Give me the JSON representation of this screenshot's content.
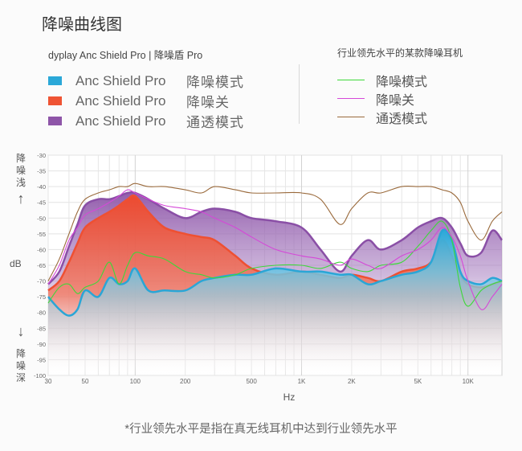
{
  "title": "降噪曲线图",
  "subtitle": "dyplay Anc Shield Pro | 降噪盾 Pro",
  "legend_left": [
    {
      "name": "Anc Shield Pro",
      "mode": "降噪模式",
      "color": "#2ba8d8"
    },
    {
      "name": "Anc Shield Pro",
      "mode": "降噪关",
      "color": "#ef5434"
    },
    {
      "name": "Anc Shield Pro",
      "mode": "通透模式",
      "color": "#8e55a8"
    }
  ],
  "legend_right_title": "行业领先水平的某款降噪耳机",
  "legend_right": [
    {
      "label": "降噪模式",
      "color": "#3ed83a"
    },
    {
      "label": "降噪关",
      "color": "#d548d8"
    },
    {
      "label": "通透模式",
      "color": "#9a6a3c"
    }
  ],
  "side_top": "降噪浅",
  "side_bottom": "降噪深",
  "arrow_up": "↑",
  "arrow_down": "↓",
  "ylabel": "dB",
  "xlabel": "Hz",
  "footnote": "*行业领先水平是指在真无线耳机中达到行业领先水平",
  "chart_data": {
    "type": "area",
    "x_scale": "log",
    "xlim": [
      30,
      16000
    ],
    "ylim": [
      -100,
      -30
    ],
    "x_ticks": [
      30,
      50,
      100,
      200,
      500,
      1000,
      2000,
      5000,
      10000
    ],
    "x_tick_labels": [
      "30",
      "50",
      "100",
      "200",
      "500",
      "1K",
      "2K",
      "5K",
      "10K"
    ],
    "y_ticks": [
      -30,
      -35,
      -40,
      -45,
      -50,
      -55,
      -60,
      -65,
      -70,
      -75,
      -80,
      -85,
      -90,
      -95,
      -100
    ],
    "y_tick_labels": [
      "-30",
      "-35",
      "-40",
      "-45",
      "-50",
      "-55",
      "-60",
      "-65",
      "-70",
      "-75",
      "-80",
      "-85",
      "-90",
      "-95",
      "-100"
    ],
    "x": [
      30,
      35,
      40,
      45,
      50,
      60,
      70,
      80,
      90,
      100,
      120,
      150,
      200,
      250,
      300,
      400,
      500,
      700,
      1000,
      1300,
      1700,
      2000,
      2500,
      3000,
      4000,
      5000,
      6000,
      7000,
      8000,
      9000,
      10000,
      12000,
      14000,
      16000
    ],
    "series": [
      {
        "name": "Anc Shield Pro 降噪通透模式",
        "style": "area",
        "color": "#8e55a8",
        "values": [
          -71,
          -67,
          -59,
          -52,
          -46,
          -44,
          -44,
          -43,
          -42,
          -42,
          -44,
          -47,
          -50,
          -48,
          -47,
          -48,
          -50,
          -51,
          -53,
          -60,
          -67,
          -62,
          -57,
          -60,
          -57,
          -53,
          -51,
          -50,
          -53,
          -58,
          -62,
          -61,
          -54,
          -57
        ]
      },
      {
        "name": "Anc Shield Pro 降噪关",
        "style": "area",
        "color": "#ef5434",
        "values": [
          -73,
          -70,
          -64,
          -58,
          -53,
          -50,
          -48,
          -46,
          -44,
          -43,
          -48,
          -53,
          -55,
          -56,
          -57,
          -62,
          -66,
          -68,
          -67,
          -68,
          -69,
          -68,
          -69,
          -70,
          -67,
          -66,
          -64,
          -57,
          -62,
          -68,
          -71,
          -72,
          -71,
          -70
        ]
      },
      {
        "name": "Anc Shield Pro 降噪模式",
        "style": "area",
        "color": "#2ba8d8",
        "values": [
          -75,
          -79,
          -81,
          -79,
          -73,
          -75,
          -69,
          -71,
          -70,
          -66,
          -73,
          -73,
          -73,
          -70,
          -69,
          -68,
          -68,
          -66,
          -67,
          -67,
          -68,
          -68,
          -71,
          -70,
          -68,
          -67,
          -64,
          -54,
          -57,
          -67,
          -70,
          -71,
          -69,
          -70
        ]
      },
      {
        "name": "行业领先水平 降噪模式",
        "style": "line",
        "color": "#3ed83a",
        "values": [
          -77,
          -72,
          -71,
          -74,
          -72,
          -70,
          -64,
          -71,
          -65,
          -61,
          -62,
          -63,
          -67,
          -68,
          -69,
          -68,
          -66,
          -65,
          -65,
          -66,
          -64,
          -66,
          -67,
          -65,
          -64,
          -59,
          -54,
          -51,
          -57,
          -72,
          -78,
          -73,
          -71,
          -70
        ]
      },
      {
        "name": "行业领先水平 降噪关",
        "style": "line",
        "color": "#d548d8",
        "values": [
          -71,
          -65,
          -57,
          -53,
          -49,
          -47,
          -45,
          -43,
          -41,
          -42,
          -44,
          -46,
          -47,
          -48,
          -50,
          -53,
          -56,
          -60,
          -62,
          -63,
          -65,
          -63,
          -65,
          -66,
          -62,
          -60,
          -57,
          -53,
          -56,
          -62,
          -70,
          -79,
          -75,
          -71
        ]
      },
      {
        "name": "行业领先水平 通透模式",
        "style": "line",
        "color": "#9a6a3c",
        "values": [
          -70,
          -63,
          -55,
          -48,
          -44,
          -42,
          -41,
          -40,
          -40,
          -39,
          -40,
          -40,
          -41,
          -42,
          -40,
          -41,
          -42,
          -42,
          -42,
          -44,
          -52,
          -47,
          -42,
          -42,
          -40,
          -40,
          -40,
          -41,
          -42,
          -45,
          -51,
          -57,
          -51,
          -48
        ]
      }
    ]
  }
}
